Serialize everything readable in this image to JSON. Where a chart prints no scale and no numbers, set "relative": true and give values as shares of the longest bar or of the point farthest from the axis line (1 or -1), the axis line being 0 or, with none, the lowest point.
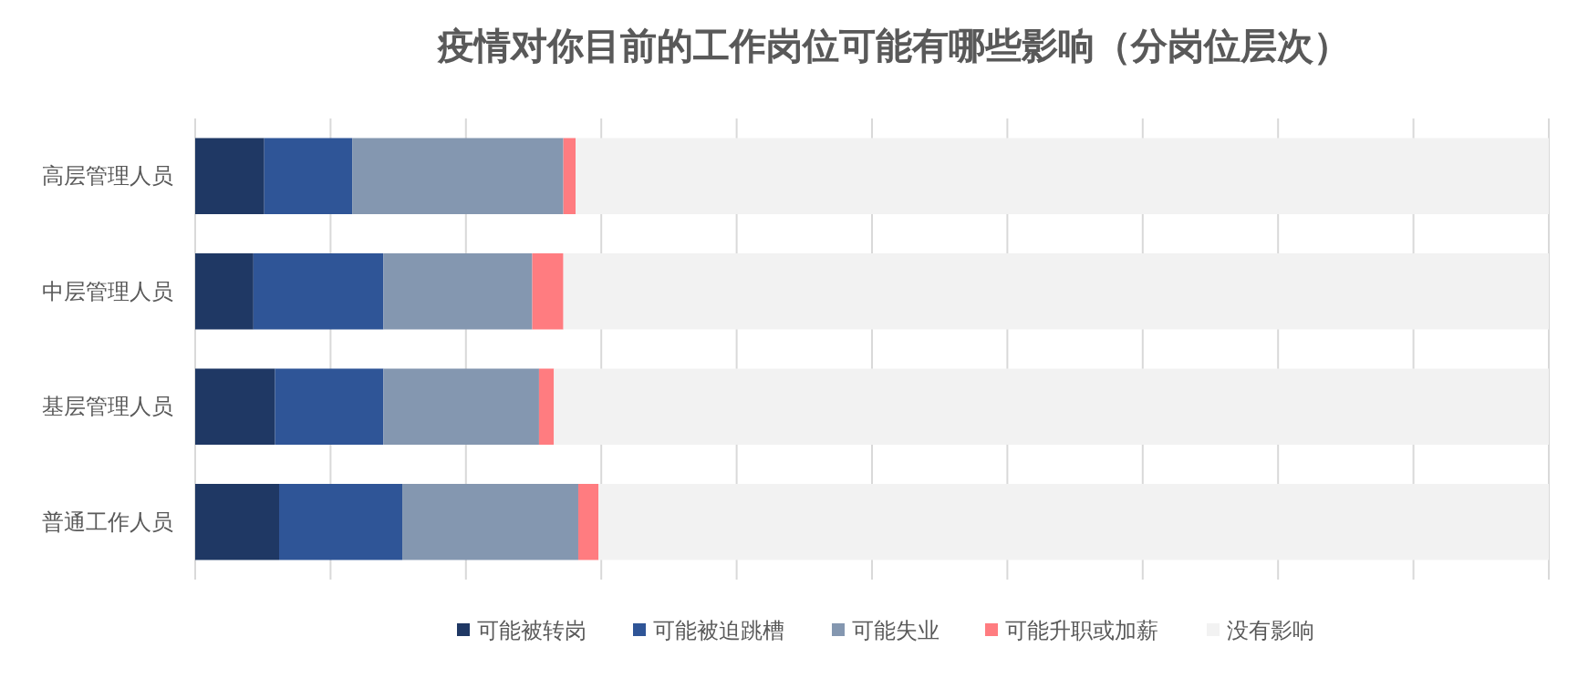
{
  "chart_data": {
    "type": "bar",
    "title": "疫情对你目前的工作岗位可能有哪些影响（分岗位层次）",
    "orientation": "horizontal",
    "stacked": true,
    "relative": true,
    "grid": "x",
    "legend": "bottom",
    "categories": [
      "高层管理人员",
      "中层管理人员",
      "基层管理人员",
      "普通工作人员"
    ],
    "series": [
      {
        "name": "可能被转岗",
        "color": "#1f3864",
        "values": [
          0.051,
          0.043,
          0.059,
          0.062
        ]
      },
      {
        "name": "可能被迫跳槽",
        "color": "#2f5597",
        "values": [
          0.065,
          0.096,
          0.08,
          0.091
        ]
      },
      {
        "name": "可能失业",
        "color": "#8497b0",
        "values": [
          0.156,
          0.11,
          0.115,
          0.13
        ]
      },
      {
        "name": "可能升职或加薪",
        "color": "#ff7c80",
        "values": [
          0.009,
          0.023,
          0.011,
          0.015
        ]
      },
      {
        "name": "没有影响",
        "color": "#f2f2f2",
        "values": [
          0.719,
          0.728,
          0.735,
          0.702
        ]
      }
    ]
  }
}
